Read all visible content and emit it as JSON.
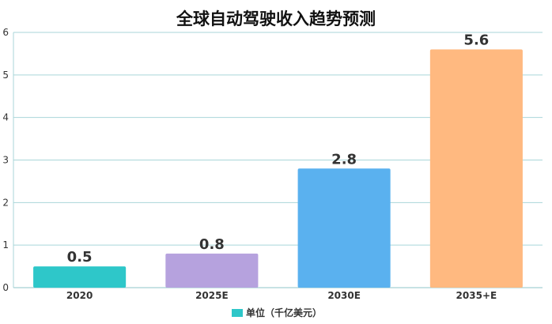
{
  "chart_data": {
    "type": "bar",
    "title": "全球自动驾驶收入趋势预测",
    "categories": [
      "2020",
      "2025E",
      "2030E",
      "2035+E"
    ],
    "series": [
      {
        "name": "单位（千亿美元）",
        "values": [
          0.5,
          0.8,
          2.8,
          5.6
        ]
      }
    ],
    "data_labels": [
      "0.5",
      "0.8",
      "2.8",
      "5.6"
    ],
    "bar_colors": [
      "#2ec7c9",
      "#b6a2de",
      "#5ab1ef",
      "#ffb980"
    ],
    "legend_color": "#2ec7c9",
    "ylim": [
      0,
      6
    ],
    "yticks": [
      "0",
      "1",
      "2",
      "3",
      "4",
      "5",
      "6"
    ],
    "grid": true,
    "grid_color": "#a9d6d9",
    "legend_position": "bottom",
    "xlabel": "",
    "ylabel": ""
  }
}
